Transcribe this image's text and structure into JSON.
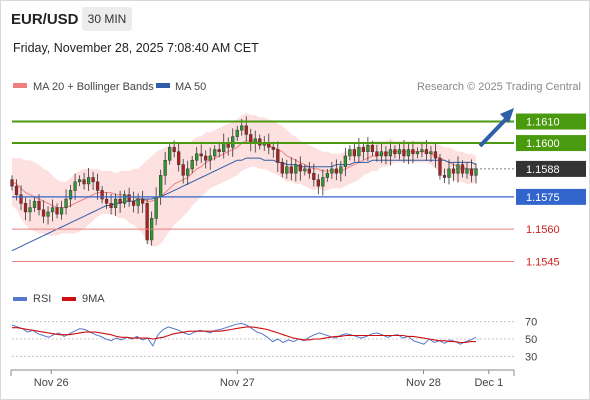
{
  "header": {
    "pair": "EUR/USD",
    "timeframe": "30 MIN",
    "datetime": "Friday, November 28, 2025 7:08:40 AM CET"
  },
  "legend": {
    "ma20": "MA 20 + Bollinger Bands",
    "ma50": "MA 50",
    "credit": "Research © 2025 Trading Central",
    "colors": {
      "ma20": "#f08080",
      "ma50": "#2f5fa8",
      "band": "#fde0e0"
    }
  },
  "rsi_legend": {
    "rsi": "RSI",
    "ma": "9MA",
    "colors": {
      "rsi": "#5577cc",
      "ma": "#d01010"
    }
  },
  "chart_data": {
    "type": "candlestick",
    "y_range": [
      1.1535,
      1.162
    ],
    "levels": [
      {
        "value": 1.161,
        "label": "1.1610",
        "kind": "resistance",
        "color": "#4a9a10"
      },
      {
        "value": 1.16,
        "label": "1.1600",
        "kind": "resistance",
        "color": "#4a9a10"
      },
      {
        "value": 1.1588,
        "label": "1.1588",
        "kind": "last-price",
        "color": "#333333"
      },
      {
        "value": 1.1575,
        "label": "1.1575",
        "kind": "pivot",
        "color": "#3366cc"
      },
      {
        "value": 1.156,
        "label": "1.1560",
        "kind": "support",
        "color": "#e88080"
      },
      {
        "value": 1.1545,
        "label": "1.1545",
        "kind": "support",
        "color": "#e88080"
      }
    ],
    "close": [
      1.158,
      1.1576,
      1.1572,
      1.1568,
      1.157,
      1.1573,
      1.1569,
      1.1566,
      1.1568,
      1.157,
      1.1567,
      1.157,
      1.1574,
      1.1578,
      1.1582,
      1.1583,
      1.1581,
      1.1584,
      1.1582,
      1.1578,
      1.1574,
      1.1572,
      1.157,
      1.1574,
      1.1572,
      1.1576,
      1.1573,
      1.1571,
      1.1574,
      1.1572,
      1.1555,
      1.1565,
      1.1575,
      1.1585,
      1.1592,
      1.1598,
      1.1596,
      1.159,
      1.1585,
      1.1588,
      1.1592,
      1.1595,
      1.1594,
      1.1592,
      1.1594,
      1.1597,
      1.1596,
      1.16,
      1.1598,
      1.1603,
      1.1606,
      1.1608,
      1.1604,
      1.16,
      1.1602,
      1.1599,
      1.16,
      1.1598,
      1.1597,
      1.1591,
      1.1586,
      1.1589,
      1.1586,
      1.159,
      1.1587,
      1.1588,
      1.1586,
      1.1583,
      1.158,
      1.1584,
      1.1586,
      1.1588,
      1.1586,
      1.1589,
      1.1594,
      1.1597,
      1.1594,
      1.1598,
      1.1596,
      1.1599,
      1.1596,
      1.1594,
      1.1596,
      1.1594,
      1.1597,
      1.1595,
      1.1597,
      1.1594,
      1.1597,
      1.1595,
      1.1596,
      1.1597,
      1.1595,
      1.1596,
      1.1593,
      1.1585,
      1.1584,
      1.1588,
      1.1586,
      1.159,
      1.1586,
      1.1588,
      1.1585,
      1.1588
    ],
    "ma20": [
      1.1582,
      1.1581,
      1.1579,
      1.1577,
      1.1576,
      1.1575,
      1.1574,
      1.1573,
      1.1572,
      1.1571,
      1.157,
      1.157,
      1.157,
      1.1571,
      1.1572,
      1.1573,
      1.1574,
      1.1575,
      1.1576,
      1.1577,
      1.1577,
      1.1577,
      1.1577,
      1.1576,
      1.1576,
      1.1576,
      1.1575,
      1.1575,
      1.1574,
      1.1574,
      1.1573,
      1.1573,
      1.1574,
      1.1575,
      1.1577,
      1.1579,
      1.1581,
      1.1582,
      1.1583,
      1.1584,
      1.1586,
      1.1588,
      1.1589,
      1.1591,
      1.1592,
      1.1593,
      1.1594,
      1.1595,
      1.1596,
      1.1597,
      1.1598,
      1.16,
      1.1601,
      1.1601,
      1.1601,
      1.16,
      1.16,
      1.1599,
      1.1598,
      1.1597,
      1.1596,
      1.1594,
      1.1593,
      1.1592,
      1.1591,
      1.159,
      1.1589,
      1.1588,
      1.1588,
      1.1587,
      1.1587,
      1.1587,
      1.1587,
      1.1587,
      1.1588,
      1.1589,
      1.159,
      1.1591,
      1.1592,
      1.1593,
      1.1594,
      1.1594,
      1.1595,
      1.1595,
      1.1596,
      1.1596,
      1.1596,
      1.1596,
      1.1596,
      1.1596,
      1.1596,
      1.1596,
      1.1596,
      1.1595,
      1.1594,
      1.1593,
      1.1592,
      1.1591,
      1.159,
      1.1589,
      1.1589,
      1.1588,
      1.1588,
      1.1588
    ],
    "ma50": [
      1.155,
      1.1551,
      1.1552,
      1.1553,
      1.1554,
      1.1555,
      1.1556,
      1.1557,
      1.1558,
      1.1559,
      1.156,
      1.1561,
      1.1562,
      1.1563,
      1.1564,
      1.1565,
      1.1566,
      1.1567,
      1.1568,
      1.1569,
      1.157,
      1.1571,
      1.1571,
      1.1572,
      1.1572,
      1.1573,
      1.1573,
      1.1573,
      1.1574,
      1.1574,
      1.1574,
      1.1574,
      1.1575,
      1.1575,
      1.1576,
      1.1577,
      1.1578,
      1.1579,
      1.158,
      1.1581,
      1.1582,
      1.1583,
      1.1584,
      1.1585,
      1.1586,
      1.1587,
      1.1588,
      1.1589,
      1.159,
      1.1591,
      1.1592,
      1.1592,
      1.1593,
      1.1593,
      1.1593,
      1.1593,
      1.1592,
      1.1592,
      1.1592,
      1.1591,
      1.1591,
      1.159,
      1.159,
      1.159,
      1.1589,
      1.1589,
      1.1589,
      1.1589,
      1.1589,
      1.1589,
      1.1589,
      1.1589,
      1.159,
      1.159,
      1.159,
      1.159,
      1.1591,
      1.1591,
      1.1591,
      1.1591,
      1.1592,
      1.1592,
      1.1592,
      1.1592,
      1.1592,
      1.1592,
      1.1592,
      1.1592,
      1.1592,
      1.1592,
      1.1592,
      1.1592,
      1.1592,
      1.1592,
      1.1592,
      1.1592,
      1.1592,
      1.1591,
      1.1591,
      1.1591,
      1.1591,
      1.1591,
      1.1591,
      1.159
    ],
    "band_width": [
      0.0011,
      0.0012,
      0.0014,
      0.0015,
      0.0016,
      0.0016,
      0.0016,
      0.0015,
      0.0015,
      0.0014,
      0.0013,
      0.0012,
      0.0012,
      0.0013,
      0.0014,
      0.0014,
      0.0014,
      0.0013,
      0.0012,
      0.0011,
      0.001,
      0.001,
      0.001,
      0.001,
      0.0011,
      0.0011,
      0.0012,
      0.0013,
      0.0014,
      0.0016,
      0.0019,
      0.0021,
      0.0022,
      0.0022,
      0.0021,
      0.002,
      0.0019,
      0.0018,
      0.0017,
      0.0016,
      0.0015,
      0.0015,
      0.0014,
      0.0014,
      0.0013,
      0.0013,
      0.0013,
      0.0013,
      0.0013,
      0.0013,
      0.0013,
      0.0013,
      0.0013,
      0.0012,
      0.0012,
      0.0012,
      0.0012,
      0.0012,
      0.0012,
      0.0012,
      0.0012,
      0.0012,
      0.0011,
      0.0011,
      0.001,
      0.001,
      0.001,
      0.001,
      0.0009,
      0.0009,
      0.0009,
      0.0008,
      0.0008,
      0.0008,
      0.0008,
      0.0008,
      0.0008,
      0.0008,
      0.0007,
      0.0007,
      0.0007,
      0.0007,
      0.0006,
      0.0006,
      0.0006,
      0.0005,
      0.0005,
      0.0005,
      0.0005,
      0.0005,
      0.0005,
      0.0005,
      0.0005,
      0.0005,
      0.0006,
      0.0006,
      0.0006,
      0.0007,
      0.0007,
      0.0007,
      0.0007,
      0.0007,
      0.0007,
      0.0006
    ],
    "rsi_axis": {
      "ticks": [
        70,
        50,
        30
      ],
      "range": [
        20,
        80
      ]
    },
    "rsi": [
      66,
      64,
      62,
      58,
      60,
      56,
      54,
      52,
      55,
      57,
      53,
      56,
      59,
      62,
      61,
      58,
      55,
      53,
      50,
      48,
      51,
      49,
      52,
      50,
      53,
      49,
      51,
      42,
      55,
      61,
      64,
      62,
      60,
      57,
      55,
      58,
      60,
      59,
      57,
      60,
      61,
      63,
      65,
      67,
      68,
      66,
      62,
      58,
      56,
      52,
      47,
      50,
      46,
      49,
      47,
      50,
      48,
      52,
      55,
      57,
      55,
      53,
      51,
      54,
      56,
      55,
      53,
      51,
      53,
      56,
      57,
      55,
      52,
      54,
      55,
      51,
      53,
      48,
      46,
      44,
      50,
      46,
      48,
      45,
      49,
      47,
      44,
      47,
      49,
      52
    ],
    "rsi_ma": [
      63,
      63,
      62,
      61,
      60,
      59,
      58,
      57,
      56,
      55,
      55,
      55,
      56,
      57,
      58,
      58,
      58,
      57,
      56,
      55,
      53,
      52,
      52,
      51,
      51,
      51,
      51,
      50,
      51,
      52,
      54,
      56,
      57,
      58,
      59,
      59,
      59,
      59,
      59,
      59,
      59,
      60,
      61,
      62,
      63,
      64,
      64,
      63,
      62,
      61,
      59,
      57,
      55,
      53,
      51,
      50,
      49,
      49,
      50,
      50,
      51,
      52,
      53,
      53,
      54,
      54,
      54,
      54,
      54,
      54,
      54,
      54,
      54,
      54,
      54,
      54,
      53,
      53,
      52,
      51,
      50,
      49,
      48,
      48,
      47,
      47,
      46,
      46,
      47,
      47
    ],
    "x_labels": [
      {
        "label": "Nov 26",
        "pos": 0.08
      },
      {
        "label": "Nov 27",
        "pos": 0.45
      },
      {
        "label": "Nov 28",
        "pos": 0.82
      },
      {
        "label": "Dec 1",
        "pos": 0.95
      }
    ]
  }
}
